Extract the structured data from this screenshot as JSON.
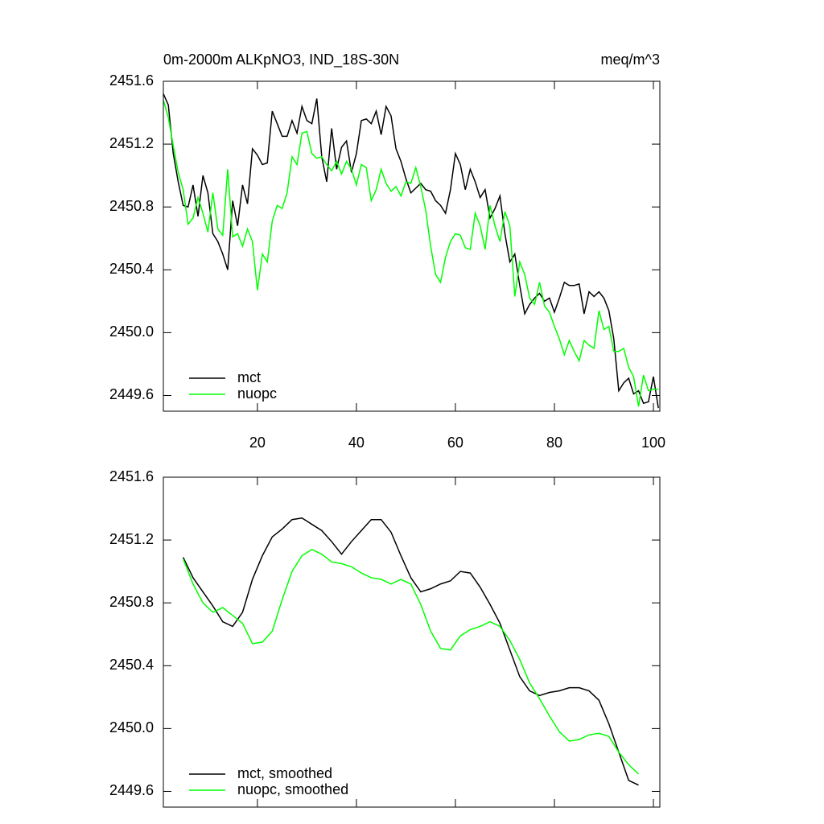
{
  "chart_data": [
    {
      "type": "line",
      "title": "0m-2000m ALKpNO3, IND_18S-30N",
      "units": "meq/m^3",
      "x": [
        1,
        2,
        3,
        4,
        5,
        6,
        7,
        8,
        9,
        10,
        11,
        12,
        13,
        14,
        15,
        16,
        17,
        18,
        19,
        20,
        21,
        22,
        23,
        24,
        25,
        26,
        27,
        28,
        29,
        30,
        31,
        32,
        33,
        34,
        35,
        36,
        37,
        38,
        39,
        40,
        41,
        42,
        43,
        44,
        45,
        46,
        47,
        48,
        49,
        50,
        51,
        52,
        53,
        54,
        55,
        56,
        57,
        58,
        59,
        60,
        61,
        62,
        63,
        64,
        65,
        66,
        67,
        68,
        69,
        70,
        71,
        72,
        73,
        74,
        75,
        76,
        77,
        78,
        79,
        80,
        81,
        82,
        83,
        84,
        85,
        86,
        87,
        88,
        89,
        90,
        91,
        92,
        93,
        94,
        95,
        96,
        97,
        98,
        99,
        100,
        101
      ],
      "series": [
        {
          "name": "mct",
          "color": "#000000",
          "values": [
            2451.52,
            2451.45,
            2451.14,
            2450.96,
            2450.81,
            2450.8,
            2450.94,
            2450.74,
            2451.0,
            2450.89,
            2450.63,
            2450.58,
            2450.5,
            2450.4,
            2450.84,
            2450.68,
            2450.94,
            2450.82,
            2451.17,
            2451.13,
            2451.07,
            2451.08,
            2451.41,
            2451.33,
            2451.25,
            2451.25,
            2451.35,
            2451.27,
            2451.44,
            2451.35,
            2451.33,
            2451.49,
            2451.12,
            2450.96,
            2451.3,
            2451.04,
            2451.18,
            2451.22,
            2451.02,
            2451.14,
            2451.35,
            2451.36,
            2451.33,
            2451.41,
            2451.26,
            2451.44,
            2451.38,
            2451.17,
            2451.09,
            2450.98,
            2450.89,
            2450.92,
            2450.95,
            2450.91,
            2450.9,
            2450.84,
            2450.81,
            2450.76,
            2450.91,
            2451.14,
            2451.07,
            2450.91,
            2451.04,
            2450.96,
            2450.86,
            2450.91,
            2450.73,
            2450.79,
            2450.87,
            2450.63,
            2450.45,
            2450.5,
            2450.3,
            2450.12,
            2450.18,
            2450.22,
            2450.25,
            2450.2,
            2450.22,
            2450.13,
            2450.22,
            2450.32,
            2450.3,
            2450.3,
            2450.31,
            2450.12,
            2450.26,
            2450.23,
            2450.26,
            2450.22,
            2450.14,
            2449.96,
            2449.63,
            2449.68,
            2449.71,
            2449.61,
            2449.63,
            2449.55,
            2449.56,
            2449.72,
            2449.52
          ]
        },
        {
          "name": "nuopc",
          "color": "#00ff00",
          "values": [
            2451.48,
            2451.37,
            2451.19,
            2451.02,
            2450.91,
            2450.69,
            2450.73,
            2450.86,
            2450.76,
            2450.64,
            2450.89,
            2450.66,
            2450.62,
            2451.04,
            2450.61,
            2450.63,
            2450.55,
            2450.66,
            2450.58,
            2450.27,
            2450.5,
            2450.45,
            2450.71,
            2450.81,
            2450.79,
            2450.89,
            2451.12,
            2451.07,
            2451.27,
            2451.28,
            2451.14,
            2451.11,
            2451.12,
            2451.07,
            2451.03,
            2451.09,
            2451.01,
            2451.09,
            2451.04,
            2450.94,
            2451.07,
            2451.05,
            2450.84,
            2450.91,
            2451.04,
            2450.95,
            2450.9,
            2450.93,
            2450.87,
            2450.96,
            2450.95,
            2451.05,
            2450.93,
            2450.78,
            2450.55,
            2450.37,
            2450.32,
            2450.48,
            2450.58,
            2450.63,
            2450.62,
            2450.54,
            2450.53,
            2450.76,
            2450.68,
            2450.53,
            2450.81,
            2450.68,
            2450.58,
            2450.77,
            2450.68,
            2450.23,
            2450.45,
            2450.37,
            2450.22,
            2450.18,
            2450.32,
            2450.17,
            2450.13,
            2450.04,
            2449.96,
            2449.86,
            2449.95,
            2449.88,
            2449.82,
            2449.95,
            2449.92,
            2449.9,
            2450.14,
            2450.02,
            2450.04,
            2449.88,
            2449.88,
            2449.9,
            2449.78,
            2449.72,
            2449.53,
            2449.73,
            2449.63,
            2449.64,
            2449.64
          ]
        }
      ],
      "xlim": [
        1,
        101.3
      ],
      "xticks": [
        20,
        40,
        60,
        80,
        100
      ],
      "ylim": [
        2449.5,
        2451.6
      ],
      "yticks": [
        2451.6,
        2451.2,
        2450.8,
        2450.4,
        {
          "value": 2450,
          "label": "2450.0"
        },
        2449.6
      ],
      "legend": "lower left"
    },
    {
      "type": "line",
      "x": [
        5,
        7,
        9,
        11,
        13,
        15,
        17,
        19,
        21,
        23,
        25,
        27,
        29,
        31,
        33,
        35,
        37,
        39,
        41,
        43,
        45,
        47,
        49,
        51,
        53,
        55,
        57,
        59,
        61,
        63,
        65,
        67,
        69,
        71,
        73,
        75,
        77,
        79,
        81,
        83,
        85,
        87,
        89,
        91,
        93,
        95,
        97
      ],
      "series": [
        {
          "name": "mct, smoothed",
          "color": "#000000",
          "values": [
            2451.09,
            2450.96,
            2450.87,
            2450.78,
            2450.68,
            2450.65,
            2450.74,
            2450.95,
            2451.1,
            2451.22,
            2451.27,
            2451.33,
            2451.34,
            2451.3,
            2451.26,
            2451.19,
            2451.11,
            2451.19,
            2451.26,
            2451.33,
            2451.33,
            2451.25,
            2451.1,
            2450.96,
            2450.87,
            2450.89,
            2450.92,
            2450.94,
            2451.0,
            2450.99,
            2450.9,
            2450.79,
            2450.67,
            2450.5,
            2450.33,
            2450.24,
            2450.21,
            2450.23,
            2450.24,
            2450.26,
            2450.26,
            2450.24,
            2450.18,
            2450.03,
            2449.85,
            2449.67,
            2449.64
          ]
        },
        {
          "name": "nuopc, smoothed",
          "color": "#00ff00",
          "values": [
            2451.08,
            2450.92,
            2450.8,
            2450.74,
            2450.77,
            2450.72,
            2450.67,
            2450.54,
            2450.55,
            2450.62,
            2450.82,
            2451.0,
            2451.1,
            2451.14,
            2451.11,
            2451.06,
            2451.05,
            2451.03,
            2450.99,
            2450.96,
            2450.95,
            2450.92,
            2450.95,
            2450.92,
            2450.79,
            2450.62,
            2450.51,
            2450.5,
            2450.59,
            2450.63,
            2450.65,
            2450.68,
            2450.65,
            2450.56,
            2450.44,
            2450.29,
            2450.19,
            2450.08,
            2449.98,
            2449.92,
            2449.93,
            2449.96,
            2449.97,
            2449.95,
            2449.85,
            2449.77,
            2449.71
          ]
        }
      ],
      "xlim": [
        1,
        101.3
      ],
      "xticks": [
        20,
        40,
        60,
        80,
        100
      ],
      "xtick_labels": false,
      "ylim": [
        2449.5,
        2451.6
      ],
      "yticks": [
        2451.6,
        2451.2,
        2450.8,
        2450.4,
        {
          "value": 2450,
          "label": "2450.0"
        },
        2449.6
      ],
      "legend": "lower left"
    }
  ]
}
